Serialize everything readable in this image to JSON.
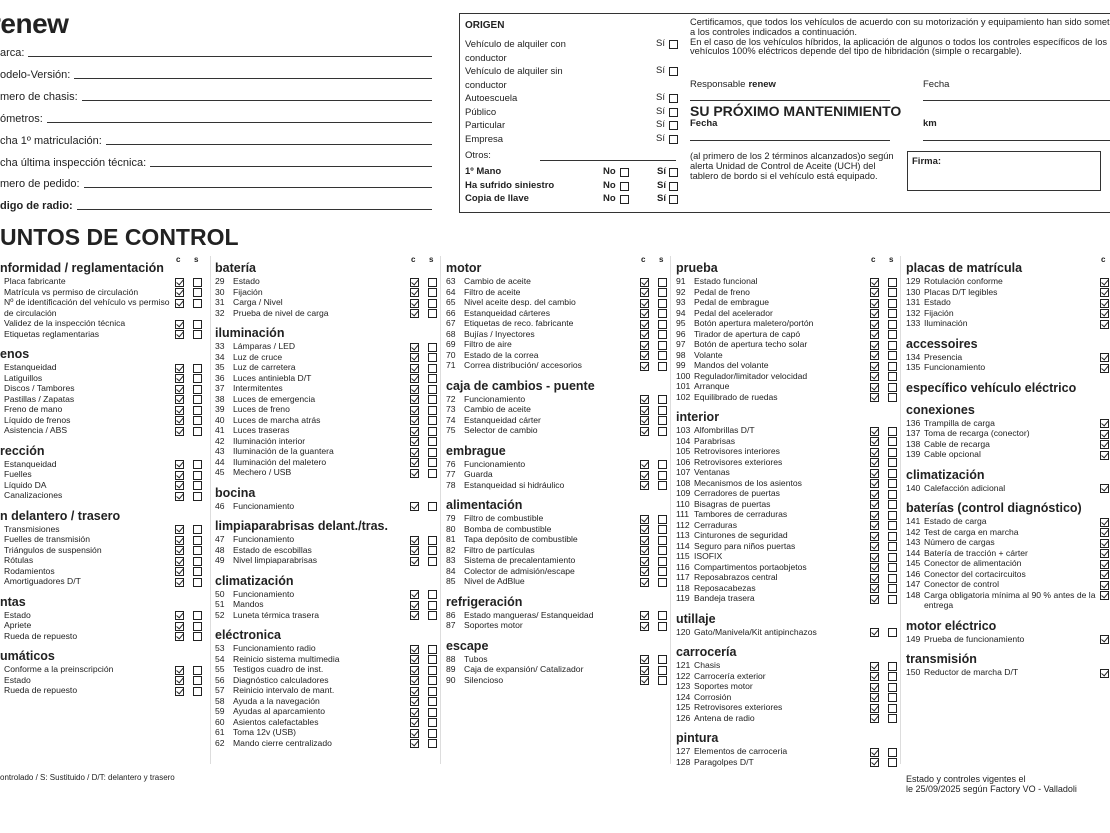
{
  "header": {
    "logo": "renew",
    "fields": [
      "arca:",
      "odelo-Versión:",
      "mero de chasis:",
      "ómetros:",
      "cha 1º matriculación:",
      "cha última inspección técnica:",
      "mero de pedido:",
      "digo de radio:"
    ]
  },
  "origin": {
    "title": "ORIGEN",
    "options": [
      {
        "label": "Vehículo de alquiler con conductor",
        "yes": "Sí"
      },
      {
        "label": "Vehículo de alquiler sin conductor",
        "yes": "Sí"
      },
      {
        "label": "Autoescuela",
        "yes": "Sí"
      },
      {
        "label": "Público",
        "yes": "Sí"
      },
      {
        "label": "Particular",
        "yes": "Sí"
      },
      {
        "label": "Empresa",
        "yes": "Sí"
      }
    ],
    "others": "Otros:",
    "questions": [
      {
        "label": "1º Mano",
        "no": "No",
        "yes": "Sí"
      },
      {
        "label": "Ha sufrido siniestro",
        "no": "No",
        "yes": "Sí"
      },
      {
        "label": "Copia de llave",
        "no": "No",
        "yes": "Sí"
      }
    ]
  },
  "certificate": {
    "text1": "Certificamos, que todos los vehículos de acuerdo con su motorización y equipamiento han sido sometidos a los controles indicados a continuación.",
    "text2": "En el caso de los vehículos híbridos, la aplicación de algunos o todos los controles específicos de los vehículos 100% eléctricos depende del tipo de hibridación (simple o recargable).",
    "responsible": "Responsable",
    "brand": "renew",
    "date": "Fecha",
    "maintenance_title": "SU PRÓXIMO MANTENIMIENTO",
    "maintenance_date": "Fecha",
    "km": "km",
    "maintenance_note": "(al primero de los 2 términos alcanzados)o según alerta Unidad de Control de Aceite (UCH) del tablero de bordo si el vehículo está equipado.",
    "signature": "Firma:"
  },
  "control": {
    "title": "UNTOS DE CONTROL",
    "col_headers": [
      "c",
      "s"
    ],
    "columns": [
      [
        {
          "title": "nformidad / reglamentación",
          "items": [
            "Placa fabricante",
            "Matrícula vs permiso de circulación",
            "Nº de identificación del vehículo vs permiso de circulación",
            "Validez de la inspección técnica",
            "Etiquetas reglamentarias"
          ]
        },
        {
          "title": "enos",
          "items": [
            "Estanqueidad",
            "Latiguillos",
            "Discos / Tambores",
            "Pastillas / Zapatas",
            "Freno de mano",
            "Líquido de frenos",
            "Asistencia / ABS"
          ]
        },
        {
          "title": "rección",
          "items": [
            "Estanqueidad",
            "Fuelles",
            "Líquido DA",
            "Canalizaciones"
          ]
        },
        {
          "title": "n delantero / trasero",
          "items": [
            "Transmisiones",
            "Fuelles de transmisión",
            "Triángulos de suspensión",
            "Rótulas",
            "Rodamientos",
            "Amortiguadores D/T"
          ]
        },
        {
          "title": "ntas",
          "items": [
            "Estado",
            "Apriete",
            "Rueda de repuesto"
          ]
        },
        {
          "title": "umáticos",
          "items": [
            "Conforme a la preinscripción",
            "Estado",
            "Rueda de repuesto"
          ]
        }
      ],
      [
        {
          "title": "batería",
          "items": [
            [
              29,
              "Estado"
            ],
            [
              30,
              "Fijación"
            ],
            [
              31,
              "Carga / Nivel"
            ],
            [
              32,
              "Prueba de nivel de carga"
            ]
          ]
        },
        {
          "title": "iluminación",
          "items": [
            [
              33,
              "Lámparas / LED"
            ],
            [
              34,
              "Luz de cruce"
            ],
            [
              35,
              "Luz de carretera"
            ],
            [
              36,
              "Luces antiniebla D/T"
            ],
            [
              37,
              "Intermitentes"
            ],
            [
              38,
              "Luces de emergencia"
            ],
            [
              39,
              "Luces de freno"
            ],
            [
              40,
              "Luces de marcha atrás"
            ],
            [
              41,
              "Luces traseras"
            ],
            [
              42,
              "Iluminación interior"
            ],
            [
              43,
              "Iluminación de la guantera"
            ],
            [
              44,
              "Iluminación del maletero"
            ],
            [
              45,
              "Mechero / USB"
            ]
          ]
        },
        {
          "title": "bocina",
          "items": [
            [
              46,
              "Funcionamiento"
            ]
          ]
        },
        {
          "title": "limpiaparabrisas delant./tras.",
          "items": [
            [
              47,
              "Funcionamiento"
            ],
            [
              48,
              "Estado de escobillas"
            ],
            [
              49,
              "Nivel limpiaparabrisas"
            ]
          ]
        },
        {
          "title": "climatización",
          "items": [
            [
              50,
              "Funcionamiento"
            ],
            [
              51,
              "Mandos"
            ],
            [
              52,
              "Luneta térmica trasera"
            ]
          ]
        },
        {
          "title": "eléctronica",
          "items": [
            [
              53,
              "Funcionamiento radio"
            ],
            [
              54,
              "Reinicio sistema multimedia"
            ],
            [
              55,
              "Testigos cuadro de inst."
            ],
            [
              56,
              "Diagnóstico calculadores"
            ],
            [
              57,
              "Reinicio intervalo de mant."
            ],
            [
              58,
              "Ayuda a la navegación"
            ],
            [
              59,
              "Ayudas al aparcamiento"
            ],
            [
              60,
              "Asientos calefactables"
            ],
            [
              61,
              "Toma 12v (USB)"
            ],
            [
              62,
              "Mando cierre centralizado"
            ]
          ]
        }
      ],
      [
        {
          "title": "motor",
          "items": [
            [
              63,
              "Cambio de aceite"
            ],
            [
              64,
              "Filtro de aceite"
            ],
            [
              65,
              "Nivel aceite desp. del cambio"
            ],
            [
              66,
              "Estanqueidad cárteres"
            ],
            [
              67,
              "Etiquetas de reco. fabricante"
            ],
            [
              68,
              "Bujías / Inyectores"
            ],
            [
              69,
              "Filtro de aire"
            ],
            [
              70,
              "Estado de la correa"
            ],
            [
              71,
              "Correa distribución/ accesorios"
            ]
          ]
        },
        {
          "title": "caja de cambios - puente",
          "items": [
            [
              72,
              "Funcionamiento"
            ],
            [
              73,
              "Cambio de aceite"
            ],
            [
              74,
              "Estanqueidad cárter"
            ],
            [
              75,
              "Selector de cambio"
            ]
          ]
        },
        {
          "title": "embrague",
          "items": [
            [
              76,
              "Funcionamiento"
            ],
            [
              77,
              "Guarda"
            ],
            [
              78,
              "Estanqueidad si hidráulico"
            ]
          ]
        },
        {
          "title": "alimentación",
          "items": [
            [
              79,
              "Filtro de combustible"
            ],
            [
              80,
              "Bomba de combustible"
            ],
            [
              81,
              "Tapa depósito de combustible"
            ],
            [
              82,
              "Filtro de partículas"
            ],
            [
              83,
              "Sistema de precalentamiento"
            ],
            [
              84,
              "Colector de admisión/escape"
            ],
            [
              85,
              "Nivel de AdBlue"
            ]
          ]
        },
        {
          "title": "refrigeración",
          "items": [
            [
              86,
              "Estado mangueras/ Estanqueidad"
            ],
            [
              87,
              "Soportes motor"
            ]
          ]
        },
        {
          "title": "escape",
          "items": [
            [
              88,
              "Tubos"
            ],
            [
              89,
              "Caja de expansión/ Catalizador"
            ],
            [
              90,
              "Silencioso"
            ]
          ]
        }
      ],
      [
        {
          "title": "prueba",
          "items": [
            [
              91,
              "Estado funcional"
            ],
            [
              92,
              "Pedal de freno"
            ],
            [
              93,
              "Pedal de embrague"
            ],
            [
              94,
              "Pedal del acelerador"
            ],
            [
              95,
              "Botón apertura maletero/portón"
            ],
            [
              96,
              "Tirador de apertura de capó"
            ],
            [
              97,
              "Botón de apertura techo solar"
            ],
            [
              98,
              "Volante"
            ],
            [
              99,
              "Mandos del volante"
            ],
            [
              100,
              "Regulador/limitador velocidad"
            ],
            [
              101,
              "Arranque"
            ],
            [
              102,
              "Equilibrado de ruedas"
            ]
          ]
        },
        {
          "title": "interior",
          "items": [
            [
              103,
              "Alfombrillas D/T"
            ],
            [
              104,
              "Parabrisas"
            ],
            [
              105,
              "Retrovisores interiores"
            ],
            [
              106,
              "Retrovisores exteriores"
            ],
            [
              107,
              "Ventanas"
            ],
            [
              108,
              "Mecanismos de los asientos"
            ],
            [
              109,
              "Cerradores de puertas"
            ],
            [
              110,
              "Bisagras de puertas"
            ],
            [
              111,
              "Tambores de cerraduras"
            ],
            [
              112,
              "Cerraduras"
            ],
            [
              113,
              "Cinturones de seguridad"
            ],
            [
              114,
              "Seguro para niños puertas"
            ],
            [
              115,
              "ISOFIX"
            ],
            [
              116,
              "Compartimentos portaobjetos"
            ],
            [
              117,
              "Reposabrazos central"
            ],
            [
              118,
              "Reposacabezas"
            ],
            [
              119,
              "Bandeja trasera"
            ]
          ]
        },
        {
          "title": "utillaje",
          "items": [
            [
              120,
              "Gato/Manivela/Kit antipinchazos"
            ]
          ]
        },
        {
          "title": "carrocería",
          "items": [
            [
              121,
              "Chasis"
            ],
            [
              122,
              "Carrocería exterior"
            ],
            [
              123,
              "Soportes motor"
            ],
            [
              124,
              "Corrosión"
            ],
            [
              125,
              "Retrovisores exteriores"
            ],
            [
              126,
              "Antena de radio"
            ]
          ]
        },
        {
          "title": "pintura",
          "items": [
            [
              127,
              "Elementos de carroceria"
            ],
            [
              128,
              "Paragolpes D/T"
            ]
          ]
        }
      ],
      [
        {
          "title": "placas de matrícula",
          "items": [
            [
              129,
              "Rotulación conforme"
            ],
            [
              130,
              "Placas D/T legibles"
            ],
            [
              131,
              "Estado"
            ],
            [
              132,
              "Fijación"
            ],
            [
              133,
              "Iluminación"
            ]
          ]
        },
        {
          "title": "accessoires",
          "items": [
            [
              134,
              "Presencia"
            ],
            [
              135,
              "Funcionamiento"
            ]
          ]
        },
        {
          "title": "específico vehículo eléctrico",
          "items": []
        },
        {
          "title": "conexiones",
          "items": [
            [
              136,
              "Trampilla de carga"
            ],
            [
              137,
              "Toma de recarga (conector)"
            ],
            [
              138,
              "Cable de recarga"
            ],
            [
              139,
              "Cable opcional"
            ]
          ]
        },
        {
          "title": "climatización",
          "items": [
            [
              140,
              "Calefacción adicional"
            ]
          ]
        },
        {
          "title": "baterías (control diagnóstico)",
          "items": [
            [
              141,
              "Estado de carga"
            ],
            [
              142,
              "Test de carga en marcha"
            ],
            [
              143,
              "Número de cargas"
            ],
            [
              144,
              "Batería de tracción + cárter"
            ],
            [
              145,
              "Conector de alimentación"
            ],
            [
              146,
              "Conector del cortacircuitos"
            ],
            [
              147,
              "Conector de control"
            ],
            [
              148,
              "Carga obligatoria mínima al 90 % antes de la entrega"
            ]
          ]
        },
        {
          "title": "motor eléctrico",
          "items": [
            [
              149,
              "Prueba de funcionamiento"
            ]
          ]
        },
        {
          "title": "transmisión",
          "items": [
            [
              150,
              "Reductor de marcha D/T"
            ]
          ]
        }
      ]
    ]
  },
  "footer": {
    "legend": "ontrolado / S: Sustituido / D/T: delantero y trasero",
    "validity": [
      "Estado y controles vigentes el",
      "le 25/09/2025 según Factory VO - Valladoli"
    ]
  }
}
